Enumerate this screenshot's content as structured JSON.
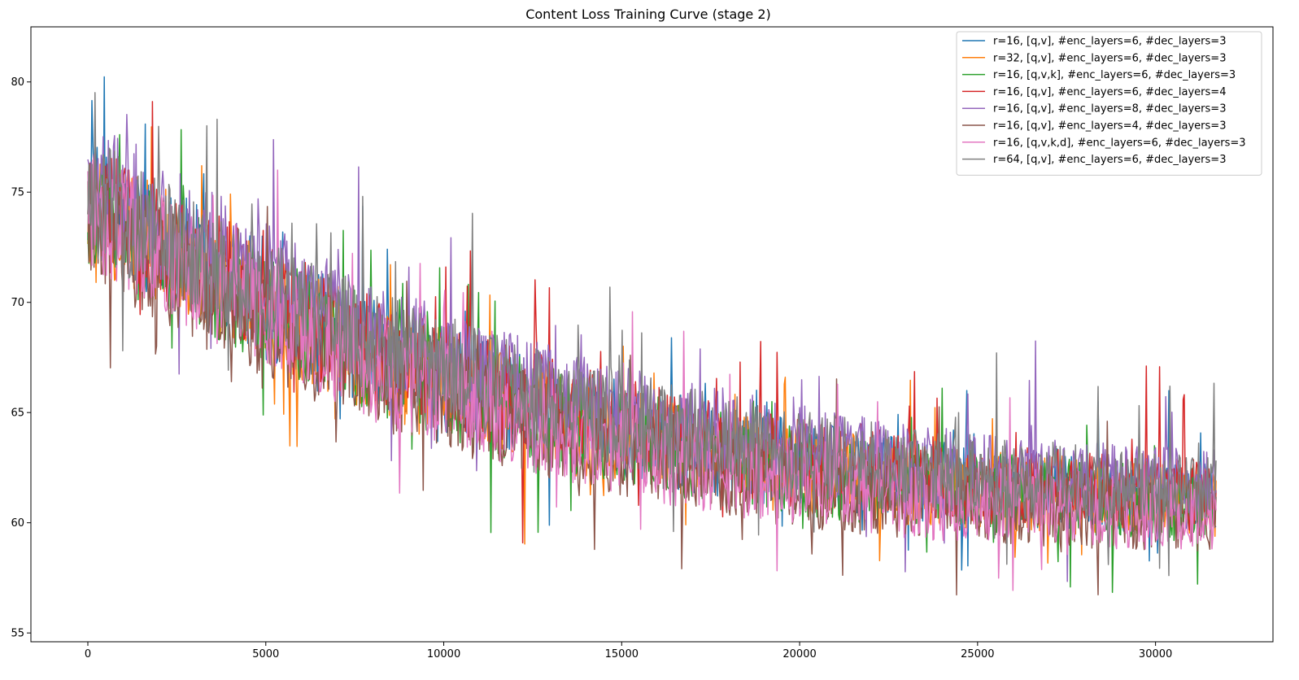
{
  "chart_data": {
    "type": "line",
    "title": "Content Loss Training Curve (stage 2)",
    "xlabel": "",
    "ylabel": "",
    "xlim": [
      -1600,
      33300
    ],
    "ylim": [
      54.6,
      82.5
    ],
    "xticks": [
      0,
      5000,
      10000,
      15000,
      20000,
      25000,
      30000
    ],
    "yticks": [
      55,
      60,
      65,
      70,
      75,
      80
    ],
    "grid": false,
    "legend_position": "top-right",
    "x_range": [
      0,
      31700
    ],
    "series": [
      {
        "name": "r=16, [q,v], #enc_layers=6, #dec_layers=3",
        "color": "#1f77b4",
        "trend": [
          [
            0,
            74.5
          ],
          [
            2000,
            72.8
          ],
          [
            5000,
            70.0
          ],
          [
            8000,
            67.7
          ],
          [
            11000,
            66.0
          ],
          [
            14000,
            64.6
          ],
          [
            17000,
            63.5
          ],
          [
            20000,
            62.6
          ],
          [
            23000,
            62.0
          ],
          [
            26000,
            61.6
          ],
          [
            29000,
            61.3
          ],
          [
            31700,
            61.1
          ]
        ]
      },
      {
        "name": "r=32, [q,v], #enc_layers=6, #dec_layers=3",
        "color": "#ff7f0e",
        "trend": [
          [
            0,
            74.3
          ],
          [
            2000,
            72.6
          ],
          [
            5000,
            69.8
          ],
          [
            8000,
            67.5
          ],
          [
            11000,
            65.8
          ],
          [
            14000,
            64.4
          ],
          [
            17000,
            63.3
          ],
          [
            20000,
            62.4
          ],
          [
            23000,
            61.8
          ],
          [
            26000,
            61.4
          ],
          [
            29000,
            61.1
          ],
          [
            31700,
            60.9
          ]
        ]
      },
      {
        "name": "r=16, [q,v,k], #enc_layers=6, #dec_layers=3",
        "color": "#2ca02c",
        "trend": [
          [
            0,
            74.2
          ],
          [
            2000,
            72.4
          ],
          [
            5000,
            69.7
          ],
          [
            8000,
            67.3
          ],
          [
            11000,
            65.6
          ],
          [
            14000,
            64.3
          ],
          [
            17000,
            63.2
          ],
          [
            20000,
            62.3
          ],
          [
            23000,
            61.7
          ],
          [
            26000,
            61.3
          ],
          [
            29000,
            61.0
          ],
          [
            31700,
            60.9
          ]
        ]
      },
      {
        "name": "r=16, [q,v], #enc_layers=6, #dec_layers=4",
        "color": "#d62728",
        "trend": [
          [
            0,
            74.6
          ],
          [
            2000,
            72.9
          ],
          [
            5000,
            70.1
          ],
          [
            8000,
            67.8
          ],
          [
            11000,
            66.1
          ],
          [
            14000,
            64.8
          ],
          [
            17000,
            63.6
          ],
          [
            20000,
            62.7
          ],
          [
            23000,
            62.1
          ],
          [
            26000,
            61.7
          ],
          [
            29000,
            61.4
          ],
          [
            31700,
            61.2
          ]
        ]
      },
      {
        "name": "r=16, [q,v], #enc_layers=8, #dec_layers=3",
        "color": "#9467bd",
        "trend": [
          [
            0,
            75.5
          ],
          [
            2000,
            73.8
          ],
          [
            5000,
            71.0
          ],
          [
            8000,
            68.6
          ],
          [
            11000,
            66.8
          ],
          [
            14000,
            65.4
          ],
          [
            17000,
            64.2
          ],
          [
            20000,
            63.3
          ],
          [
            23000,
            62.6
          ],
          [
            26000,
            62.2
          ],
          [
            29000,
            61.9
          ],
          [
            31700,
            61.7
          ]
        ]
      },
      {
        "name": "r=16, [q,v], #enc_layers=4, #dec_layers=3",
        "color": "#8c564b",
        "trend": [
          [
            0,
            73.8
          ],
          [
            2000,
            71.8
          ],
          [
            5000,
            69.1
          ],
          [
            8000,
            66.8
          ],
          [
            11000,
            65.1
          ],
          [
            14000,
            63.8
          ],
          [
            17000,
            62.7
          ],
          [
            20000,
            61.8
          ],
          [
            23000,
            61.2
          ],
          [
            26000,
            60.8
          ],
          [
            29000,
            60.5
          ],
          [
            31700,
            60.3
          ]
        ]
      },
      {
        "name": "r=16, [q,v,k,d], #enc_layers=6, #dec_layers=3",
        "color": "#e377c2",
        "trend": [
          [
            0,
            74.4
          ],
          [
            2000,
            72.3
          ],
          [
            5000,
            69.5
          ],
          [
            8000,
            67.1
          ],
          [
            11000,
            65.3
          ],
          [
            14000,
            63.9
          ],
          [
            17000,
            62.7
          ],
          [
            20000,
            61.8
          ],
          [
            23000,
            61.2
          ],
          [
            26000,
            60.8
          ],
          [
            29000,
            60.5
          ],
          [
            31700,
            60.4
          ]
        ]
      },
      {
        "name": "r=64, [q,v], #enc_layers=6, #dec_layers=3",
        "color": "#7f7f7f",
        "trend": [
          [
            0,
            74.8
          ],
          [
            2000,
            73.1
          ],
          [
            5000,
            70.4
          ],
          [
            8000,
            68.2
          ],
          [
            11000,
            66.5
          ],
          [
            14000,
            65.1
          ],
          [
            17000,
            64.0
          ],
          [
            20000,
            63.1
          ],
          [
            23000,
            62.4
          ],
          [
            26000,
            62.0
          ],
          [
            29000,
            61.7
          ],
          [
            31700,
            61.5
          ]
        ]
      }
    ]
  }
}
